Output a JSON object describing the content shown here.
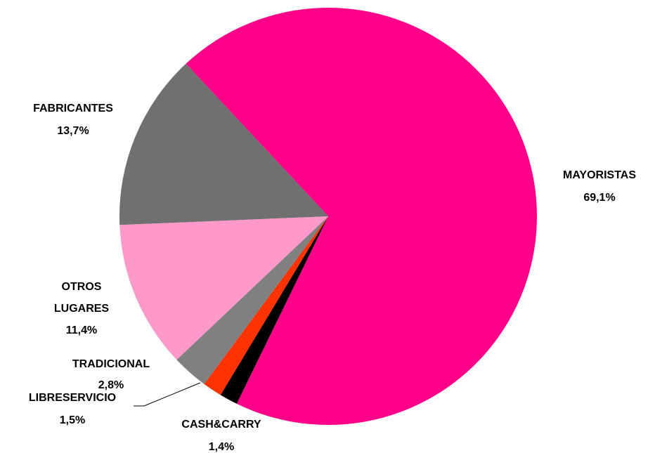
{
  "chart_data": {
    "type": "pie",
    "title": "",
    "start_angle_deg": 133,
    "direction": "clockwise",
    "slices": [
      {
        "name": "MAYORISTAS",
        "value": 69.1,
        "label": "69,1%",
        "color": "#ff0088"
      },
      {
        "name": "CASH&CARRY",
        "value": 1.4,
        "label": "1,4%",
        "color": "#000000"
      },
      {
        "name": "LIBRESERVICIO",
        "value": 1.5,
        "label": "1,5%",
        "color": "#ff3300"
      },
      {
        "name": "TRADICIONAL",
        "value": 2.8,
        "label": "2,8%",
        "color": "#808080"
      },
      {
        "name": "OTROS LUGARES",
        "value": 11.4,
        "label": "11,4%",
        "color": "#ff99cc"
      },
      {
        "name": "FABRICANTES",
        "value": 13.7,
        "label": "13,7%",
        "color": "#707070"
      }
    ]
  }
}
